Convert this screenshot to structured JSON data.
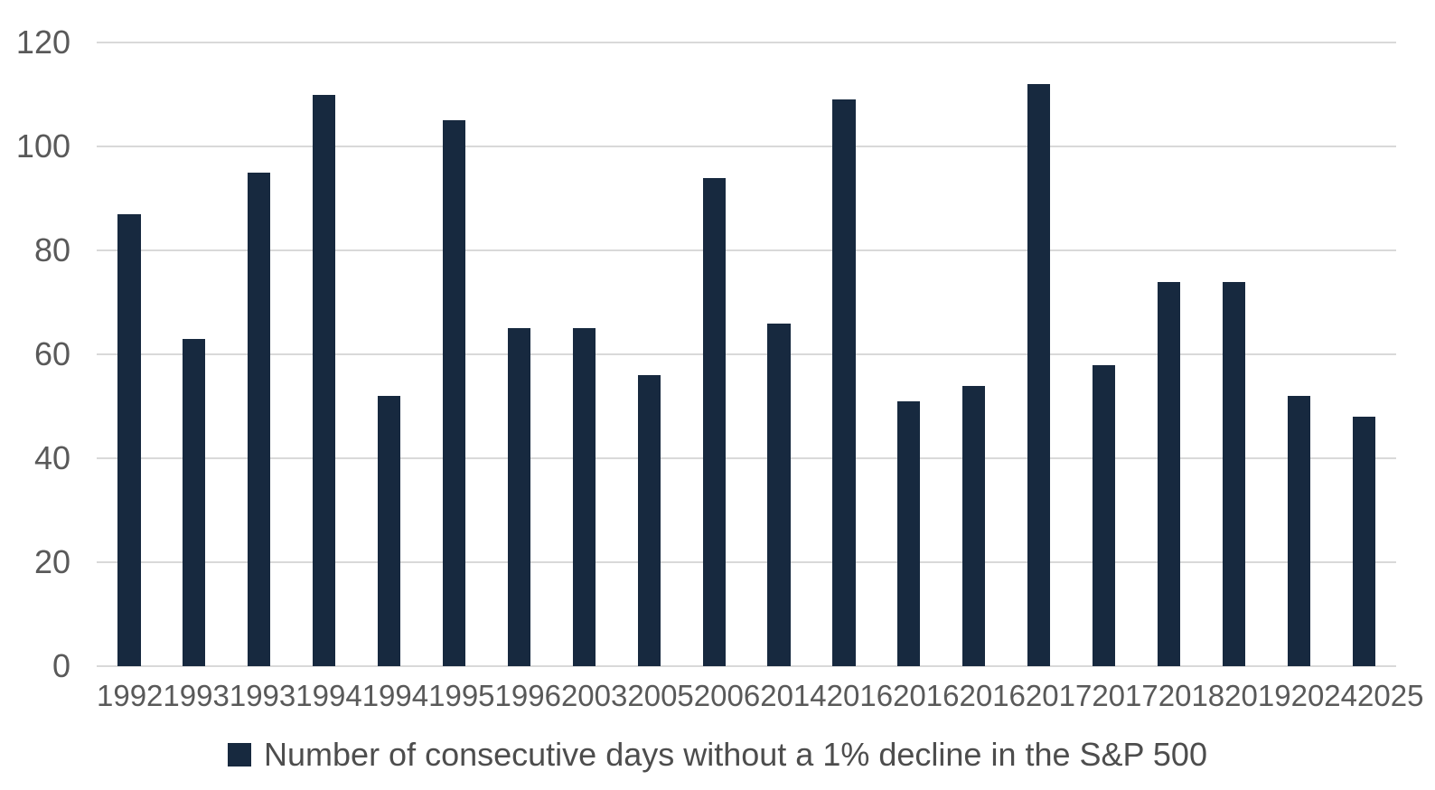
{
  "chart_data": {
    "type": "bar",
    "categories": [
      "1992",
      "1993",
      "1993",
      "1994",
      "1994",
      "1995",
      "1996",
      "2003",
      "2005",
      "2006",
      "2014",
      "2016",
      "2016",
      "2016",
      "2017",
      "2017",
      "2018",
      "2019",
      "2024",
      "2025"
    ],
    "values": [
      87,
      63,
      95,
      110,
      52,
      105,
      65,
      65,
      56,
      94,
      66,
      109,
      51,
      54,
      112,
      58,
      74,
      74,
      52,
      48
    ],
    "title": "",
    "xlabel": "",
    "ylabel": "",
    "ylim": [
      0,
      120
    ],
    "yticks": [
      0,
      20,
      40,
      60,
      80,
      100,
      120
    ],
    "grid": "horizontal",
    "legend": {
      "position": "bottom",
      "entries": [
        {
          "label": "Number of consecutive days without a 1% decline in the S&P 500",
          "color": "#17293F"
        }
      ]
    },
    "colors": {
      "bar": "#17293F",
      "gridline": "#D9D9D9",
      "tick_label": "#595959",
      "legend_text": "#4D4D4D",
      "background": "#FFFFFF"
    }
  }
}
